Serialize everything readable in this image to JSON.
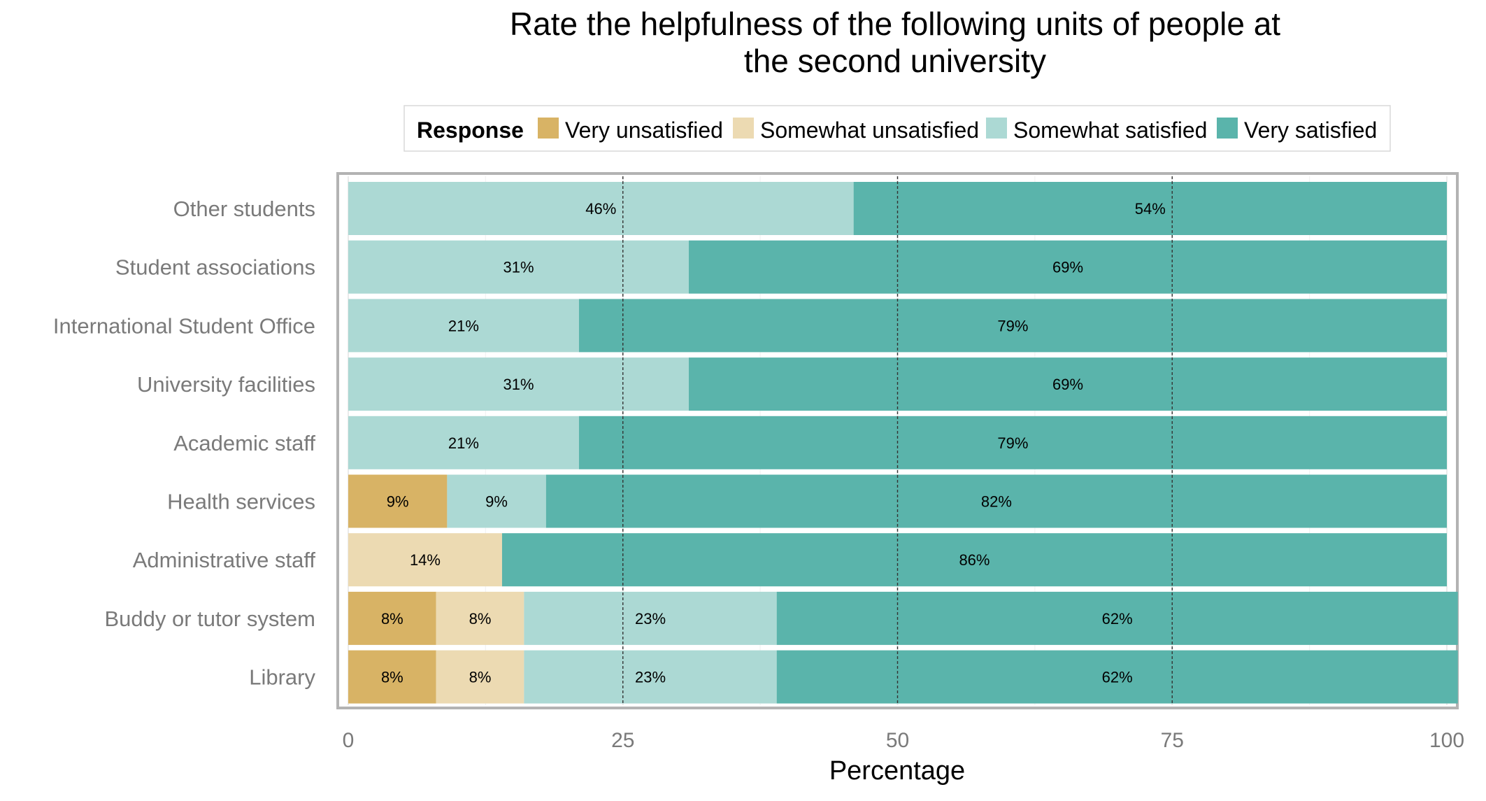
{
  "chart_data": {
    "type": "bar",
    "orientation": "horizontal",
    "stacked": true,
    "title": "Rate the helpfulness of the following units of people at the second university",
    "title_lines": [
      "Rate the helpfulness of the following units of people at",
      "the second university"
    ],
    "xlabel": "Percentage",
    "ylabel": "",
    "xlim": [
      0,
      100
    ],
    "x_ticks": [
      0,
      25,
      50,
      75,
      100
    ],
    "reference_lines": [
      25,
      50,
      75
    ],
    "grid": true,
    "legend": {
      "title": "Response",
      "position": "top"
    },
    "categories": [
      "Other students",
      "Student associations",
      "International Student Office",
      "University facilities",
      "Academic staff",
      "Health services",
      "Administrative staff",
      "Buddy or tutor system",
      "Library"
    ],
    "series": [
      {
        "name": "Very unsatisfied",
        "color": "#d8b365",
        "values": [
          0,
          0,
          0,
          0,
          0,
          9,
          0,
          8,
          8
        ]
      },
      {
        "name": "Somewhat unsatisfied",
        "color": "#ecdab2",
        "values": [
          0,
          0,
          0,
          0,
          0,
          0,
          14,
          8,
          8
        ]
      },
      {
        "name": "Somewhat satisfied",
        "color": "#acd9d4",
        "values": [
          46,
          31,
          21,
          31,
          21,
          9,
          0,
          23,
          23
        ]
      },
      {
        "name": "Very satisfied",
        "color": "#5ab4ab",
        "values": [
          54,
          69,
          79,
          69,
          79,
          82,
          86,
          62,
          62
        ]
      }
    ]
  }
}
